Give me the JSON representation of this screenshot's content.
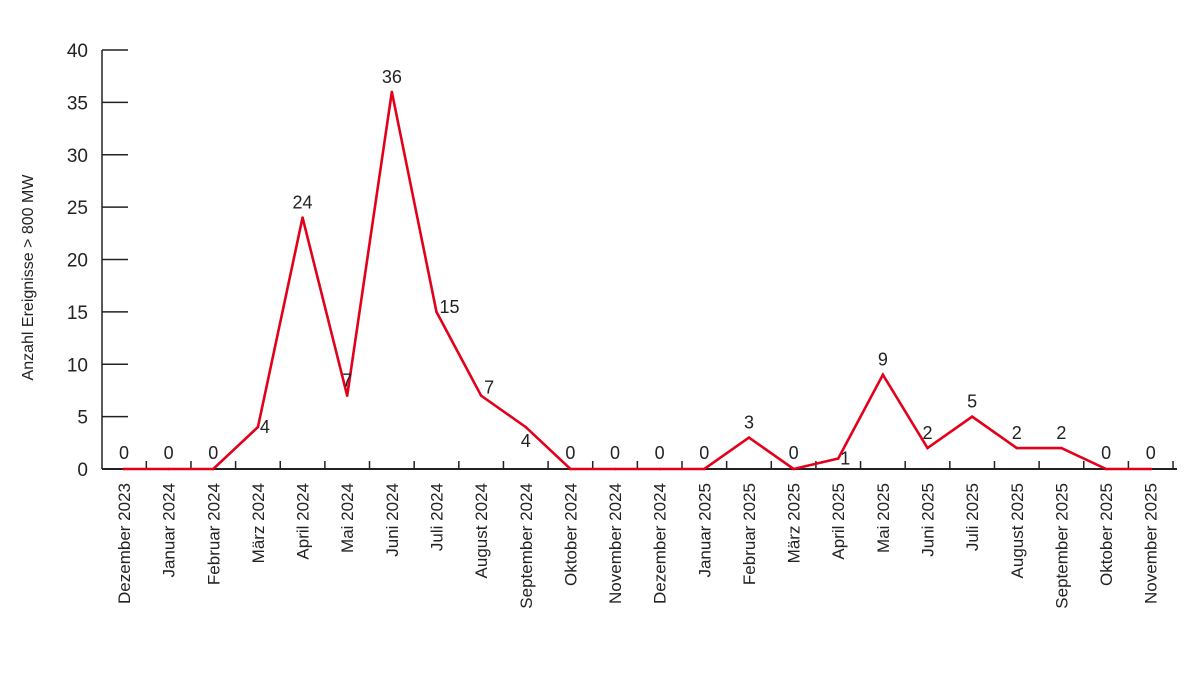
{
  "chart_data": {
    "type": "line",
    "title": "",
    "xlabel": "",
    "ylabel": "Anzahl Ereignisse > 800 MW",
    "ylim": [
      0,
      40
    ],
    "yticks": [
      "0",
      "5",
      "10",
      "15",
      "20",
      "25",
      "30",
      "35",
      "40"
    ],
    "grid": false,
    "legend": "none",
    "categories": [
      "Dezember 2023",
      "Januar 2024",
      "Februar 2024",
      "März 2024",
      "April 2024",
      "Mai 2024",
      "Juni 2024",
      "Juli 2024",
      "August 2024",
      "September 2024",
      "Oktober 2024",
      "November 2024",
      "Dezember 2024",
      "Januar 2025",
      "Februar 2025",
      "März 2025",
      "April 2025",
      "Mai 2025",
      "Juni 2025",
      "Juli 2025",
      "August 2025",
      "September 2025",
      "Oktober 2025",
      "November 2025"
    ],
    "series": [
      {
        "name": "Anzahl Ereignisse > 800 MW",
        "color": "#e3001b",
        "values": [
          0,
          0,
          0,
          4,
          24,
          7,
          36,
          15,
          7,
          4,
          0,
          0,
          0,
          0,
          3,
          0,
          1,
          9,
          2,
          5,
          2,
          2,
          0,
          0
        ],
        "labels": [
          "0",
          "0",
          "0",
          "4",
          "24",
          "7",
          "36",
          "15",
          "7",
          "4",
          "0",
          "0",
          "0",
          "0",
          "3",
          "0",
          "1",
          "9",
          "2",
          "5",
          "2",
          "2",
          "0",
          "0"
        ]
      }
    ]
  }
}
